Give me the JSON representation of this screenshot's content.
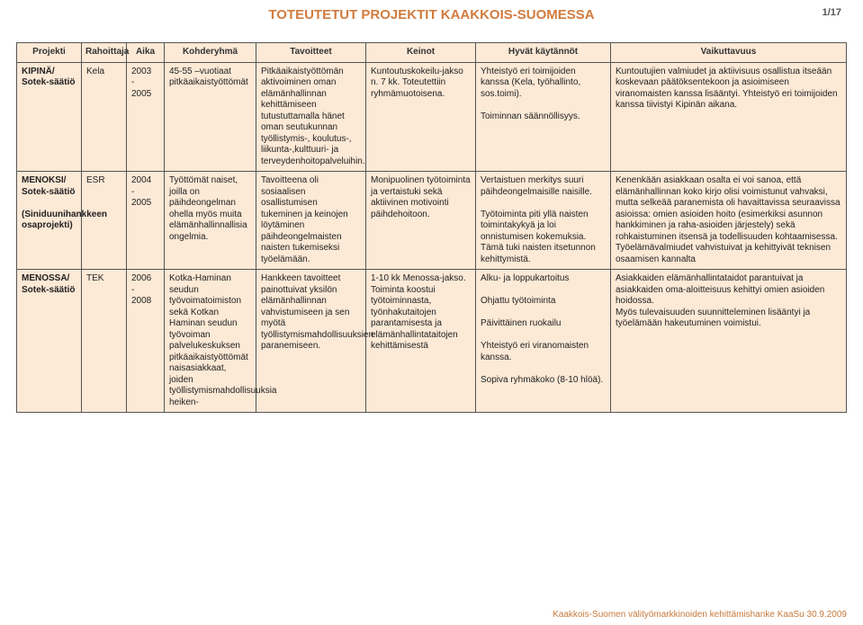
{
  "page": {
    "title": "TOTEUTETUT PROJEKTIT KAAKKOIS-SUOMESSA",
    "page_num": "1/17",
    "footer": "Kaakkois-Suomen välityömarkkinoiden kehittämishanke KaaSu 30.9.2009"
  },
  "headers": [
    "Projekti",
    "Rahoittaja",
    "Aika",
    "Kohderyhmä",
    "Tavoitteet",
    "Keinot",
    "Hyvät käytännöt",
    "Vaikuttavuus"
  ],
  "rows": [
    {
      "projekti": "KIPINÄ/\nSotek-säätiö",
      "rahoittaja": "Kela",
      "aika": "2003\n-\n2005",
      "kohderyhma": "45-55 –vuotiaat pitkäaikaistyöttömät",
      "tavoitteet": "Pitkäaikaistyöttömän aktivoiminen oman elämänhallinnan kehittämiseen tutustuttamalla hänet oman seutukunnan työllistymis-, koulutus-, liikunta-,kulttuuri- ja terveydenhoitopalveluihin.",
      "keinot": "Kuntoutuskokeilu-jakso n. 7 kk. Toteutettiin ryhmämuotoisena.",
      "hyvat": "Yhteistyö eri toimijoiden kanssa (Kela, työhallinto, sos.toimi).\n\nToiminnan säännöllisyys.",
      "vaikuttavuus": "Kuntoutujien valmiudet ja aktiivisuus osallistua itseään koskevaan päätöksentekoon ja asioimiseen viranomaisten kanssa lisääntyi. Yhteistyö eri toimijoiden kanssa tiivistyi Kipinän aikana."
    },
    {
      "projekti": "MENOKSI/\nSotek-säätiö\n\n(Siniduunihankkeen osaprojekti)",
      "rahoittaja": "ESR",
      "aika": "2004\n-\n2005",
      "kohderyhma": "Työttömät naiset, joilla on päihdeongelman ohella myös muita elämänhallinnallisia ongelmia.",
      "tavoitteet": "Tavoitteena oli sosiaalisen osallistumisen tukeminen ja keinojen löytäminen päihdeongelmaisten naisten tukemiseksi työelämään.",
      "keinot": "Monipuolinen työtoiminta ja vertaistuki sekä aktiivinen motivointi päihdehoitoon.",
      "hyvat": "Vertaistuen merkitys suuri päihdeongelmaisille naisille.\n\nTyötoiminta piti yllä naisten toimintakykyä ja loi onnistumisen kokemuksia. Tämä tuki naisten itsetunnon kehittymistä.",
      "vaikuttavuus": "Kenenkään asiakkaan osalta ei voi sanoa, että elämänhallinnan koko kirjo olisi voimistunut vahvaksi, mutta selkeää paranemista oli havaittavissa seuraavissa asioissa: omien asioiden hoito (esimerkiksi asunnon hankkiminen ja raha-asioiden järjestely) sekä rohkaistuminen itsensä ja todellisuuden kohtaamisessa. Työelämävalmiudet vahvistuivat ja kehittyivät teknisen osaamisen kannalta"
    },
    {
      "projekti": "MENOSSA/\nSotek-säätiö",
      "rahoittaja": "TEK",
      "aika": "2006\n-\n2008",
      "kohderyhma": "Kotka-Haminan seudun työvoimatoimiston sekä Kotkan Haminan seudun työvoiman palvelukeskuksen pitkäaikaistyöttömät naisasiakkaat, joiden työllistymismahdollisuuksia heiken-",
      "tavoitteet": "Hankkeen tavoitteet painottuivat yksilön elämänhallinnan vahvistumiseen ja sen myötä työllistymismahdollisuuksien paranemiseen.",
      "keinot": "1-10 kk Menossa-jakso. Toiminta koostui työtoiminnasta, työnhakutaitojen parantamisesta ja elämänhallintataitojen kehittämisestä",
      "hyvat": "Alku- ja loppukartoitus\n\nOhjattu työtoiminta\n\nPäivittäinen ruokailu\n\nYhteistyö eri viranomaisten kanssa.\n\nSopiva ryhmäkoko (8-10 hlöä).",
      "vaikuttavuus": "Asiakkaiden elämänhallintataidot parantuivat ja asiakkaiden oma-aloitteisuus kehittyi omien asioiden hoidossa.\nMyös tulevaisuuden suunnitteleminen lisääntyi ja työelämään hakeutuminen voimistui."
    }
  ]
}
